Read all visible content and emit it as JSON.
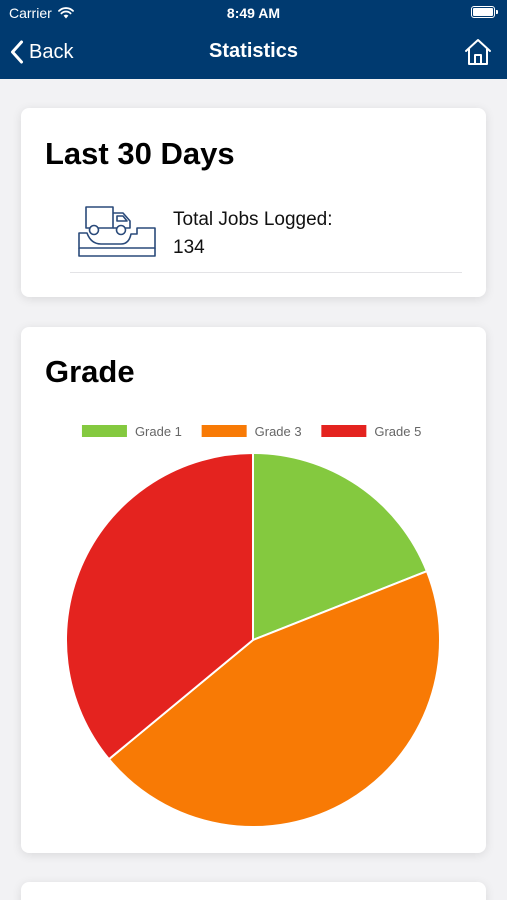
{
  "status_bar": {
    "carrier": "Carrier",
    "time": "8:49 AM"
  },
  "nav": {
    "back_label": "Back",
    "title": "Statistics",
    "home_icon": "home-icon"
  },
  "summary_card": {
    "title": "Last 30 Days",
    "jobs_label": "Total Jobs Logged:",
    "jobs_value": "134",
    "icon": "truck-icon"
  },
  "grade_card": {
    "title": "Grade"
  },
  "chart_data": {
    "type": "pie",
    "title": "Grade",
    "legend_position": "top",
    "categories": [
      "Grade 1",
      "Grade 3",
      "Grade 5"
    ],
    "values": [
      19,
      45,
      36
    ],
    "colors": [
      "#84c93f",
      "#f87a05",
      "#e4231f"
    ]
  },
  "colors": {
    "header_bg": "#003a70",
    "page_bg": "#f2f2f4"
  }
}
